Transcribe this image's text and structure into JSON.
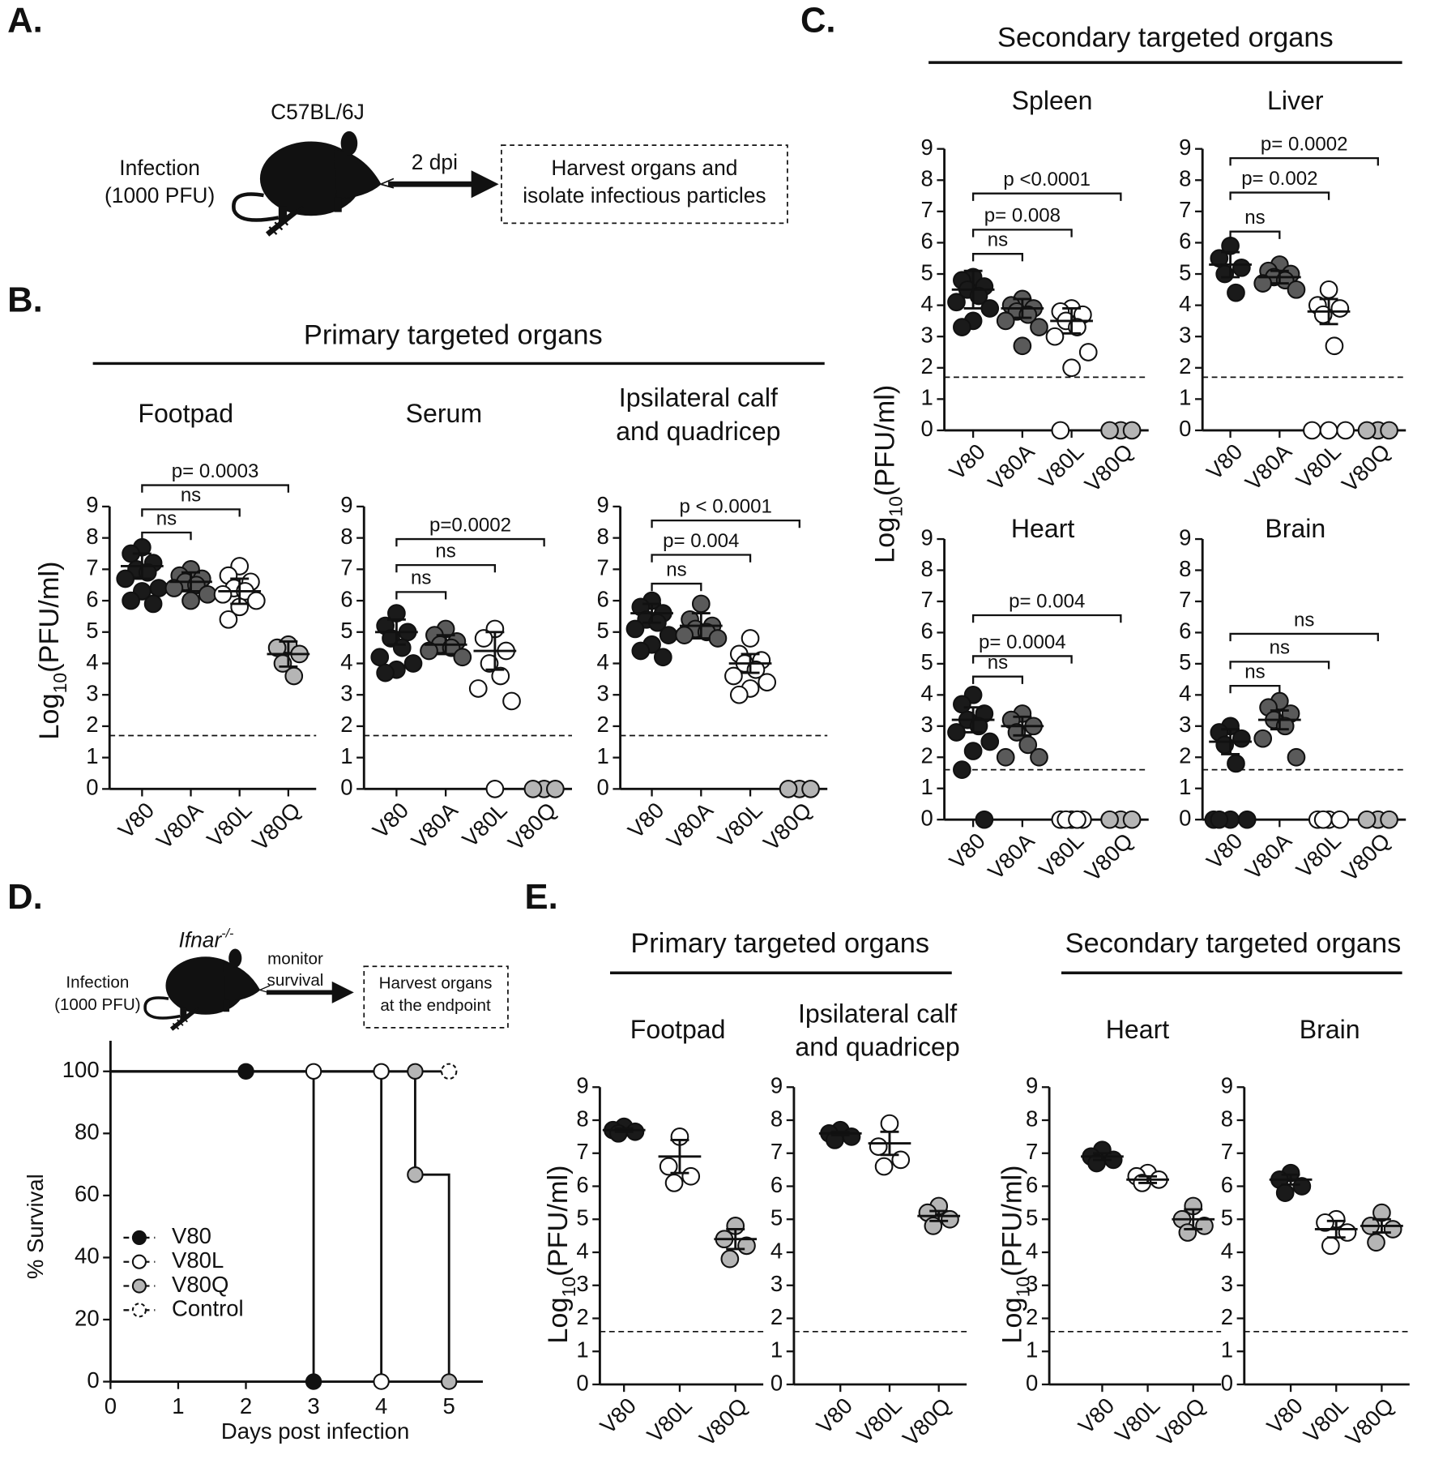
{
  "panels": [
    "A.",
    "B.",
    "C.",
    "D.",
    "E."
  ],
  "schematic_a": {
    "strain": "C57BL/6J",
    "infection": [
      "Infection",
      "(1000 PFU)"
    ],
    "arrow": "2 dpi",
    "box": [
      "Harvest organs and",
      "isolate infectious particles"
    ]
  },
  "schematic_d": {
    "strain": "Ifnar",
    "strain_sup": "-/-",
    "infection": [
      "Infection",
      "(1000 PFU)"
    ],
    "arrow": [
      "monitor",
      "survival"
    ],
    "box": [
      "Harvest organs",
      "at the endpoint"
    ]
  },
  "headers": {
    "b": "Primary targeted organs",
    "c": "Secondary targeted organs",
    "e_primary": "Primary targeted organs",
    "e_secondary": "Secondary targeted organs"
  },
  "ylabel": {
    "base": "Log",
    "sub": "10",
    "rest": "(PFU/ml)"
  },
  "chart_data": [
    {
      "type": "dot",
      "title": [
        "Footpad"
      ],
      "categories": [
        "V80",
        "V80A",
        "V80L",
        "V80Q"
      ],
      "colors": [
        "#1a1a1a",
        "#5a5a5a",
        "#ffffff",
        "#b5b5b5"
      ],
      "points": [
        [
          7.7,
          7.5,
          7.2,
          7.0,
          6.9,
          6.7,
          6.4,
          6.3,
          6.0,
          5.9
        ],
        [
          7.0,
          6.8,
          6.7,
          6.6,
          6.5,
          6.4,
          6.2,
          6.0
        ],
        [
          7.1,
          6.8,
          6.6,
          6.4,
          6.3,
          6.2,
          6.0,
          5.8,
          5.4
        ],
        [
          4.6,
          4.5,
          4.3,
          4.0,
          3.6
        ]
      ],
      "means": [
        7.1,
        6.6,
        6.3,
        4.3
      ],
      "errors": [
        0.4,
        0.3,
        0.4,
        0.4
      ],
      "limit": 1.7,
      "ylim": [
        0,
        9
      ],
      "yticks": [
        0,
        1,
        2,
        3,
        4,
        5,
        6,
        7,
        8,
        9
      ],
      "comparisons": [
        {
          "groups": [
            "V80",
            "V80A"
          ],
          "label": "ns"
        },
        {
          "groups": [
            "V80",
            "V80L"
          ],
          "label": "ns"
        },
        {
          "groups": [
            "V80",
            "V80Q"
          ],
          "label": "p= 0.0003"
        }
      ]
    },
    {
      "type": "dot",
      "title": [
        "Serum"
      ],
      "categories": [
        "V80",
        "V80A",
        "V80L",
        "V80Q"
      ],
      "colors": [
        "#1a1a1a",
        "#5a5a5a",
        "#ffffff",
        "#b5b5b5"
      ],
      "points": [
        [
          5.6,
          5.2,
          5.0,
          4.8,
          4.5,
          4.2,
          4.0,
          3.8,
          3.7
        ],
        [
          5.1,
          4.9,
          4.7,
          4.6,
          4.5,
          4.4,
          4.2
        ],
        [
          5.1,
          4.8,
          4.4,
          4.0,
          3.6,
          3.2,
          2.8,
          0
        ],
        [
          0,
          0,
          0
        ]
      ],
      "means": [
        5.0,
        4.6,
        4.4,
        null
      ],
      "errors": [
        0.4,
        0.3,
        0.6,
        null
      ],
      "limit": 1.7,
      "ylim": [
        0,
        9
      ],
      "yticks": [
        0,
        1,
        2,
        3,
        4,
        5,
        6,
        7,
        8,
        9
      ],
      "comparisons": [
        {
          "groups": [
            "V80",
            "V80A"
          ],
          "label": "ns"
        },
        {
          "groups": [
            "V80",
            "V80L"
          ],
          "label": "ns"
        },
        {
          "groups": [
            "V80",
            "V80Q"
          ],
          "label": "p=0.0002"
        }
      ]
    },
    {
      "type": "dot",
      "title": [
        "Ipsilateral calf",
        "and quadricep"
      ],
      "categories": [
        "V80",
        "V80A",
        "V80L",
        "V80Q"
      ],
      "colors": [
        "#1a1a1a",
        "#5a5a5a",
        "#ffffff",
        "#b5b5b5"
      ],
      "points": [
        [
          6.0,
          5.8,
          5.6,
          5.4,
          5.3,
          5.1,
          4.9,
          4.6,
          4.4,
          4.2
        ],
        [
          5.9,
          5.4,
          5.2,
          5.1,
          5.0,
          4.9,
          4.8
        ],
        [
          4.8,
          4.3,
          4.1,
          4.0,
          3.8,
          3.6,
          3.4,
          3.2,
          3.0
        ],
        [
          0,
          0,
          0
        ]
      ],
      "means": [
        5.6,
        5.2,
        4.0,
        null
      ],
      "errors": [
        0.3,
        0.4,
        0.3,
        null
      ],
      "limit": 1.7,
      "ylim": [
        0,
        9
      ],
      "yticks": [
        0,
        1,
        2,
        3,
        4,
        5,
        6,
        7,
        8,
        9
      ],
      "comparisons": [
        {
          "groups": [
            "V80",
            "V80A"
          ],
          "label": "ns"
        },
        {
          "groups": [
            "V80",
            "V80L"
          ],
          "label": "p= 0.004"
        },
        {
          "groups": [
            "V80",
            "V80Q"
          ],
          "label": "p < 0.0001"
        }
      ]
    },
    {
      "type": "dot",
      "title": [
        "Spleen"
      ],
      "categories": [
        "V80",
        "V80A",
        "V80L",
        "V80Q"
      ],
      "colors": [
        "#1a1a1a",
        "#5a5a5a",
        "#ffffff",
        "#b5b5b5"
      ],
      "points": [
        [
          4.9,
          4.8,
          4.6,
          4.5,
          4.3,
          4.1,
          3.9,
          3.5,
          3.3
        ],
        [
          4.2,
          4.0,
          3.9,
          3.8,
          3.7,
          3.5,
          3.3,
          2.7
        ],
        [
          3.9,
          3.8,
          3.7,
          3.5,
          3.3,
          3.0,
          2.5,
          2.0,
          0
        ],
        [
          0,
          0,
          0
        ]
      ],
      "means": [
        4.5,
        3.9,
        3.5,
        null
      ],
      "errors": [
        0.6,
        0.3,
        0.4,
        null
      ],
      "limit": 1.7,
      "ylim": [
        0,
        9
      ],
      "yticks": [
        0,
        1,
        2,
        3,
        4,
        5,
        6,
        7,
        8,
        9
      ],
      "comparisons": [
        {
          "groups": [
            "V80",
            "V80A"
          ],
          "label": "ns"
        },
        {
          "groups": [
            "V80",
            "V80L"
          ],
          "label": "p= 0.008"
        },
        {
          "groups": [
            "V80",
            "V80Q"
          ],
          "label": "p <0.0001"
        }
      ]
    },
    {
      "type": "dot",
      "title": [
        "Liver"
      ],
      "categories": [
        "V80",
        "V80A",
        "V80L",
        "V80Q"
      ],
      "colors": [
        "#1a1a1a",
        "#5a5a5a",
        "#ffffff",
        "#b5b5b5"
      ],
      "points": [
        [
          5.9,
          5.5,
          5.2,
          5.0,
          4.4
        ],
        [
          5.3,
          5.1,
          5.0,
          4.9,
          4.8,
          4.7,
          4.5
        ],
        [
          4.5,
          4.0,
          3.9,
          3.7,
          2.7,
          0,
          0,
          0
        ],
        [
          0,
          0,
          0
        ]
      ],
      "means": [
        5.3,
        4.9,
        3.8,
        null
      ],
      "errors": [
        0.4,
        0.2,
        0.4,
        null
      ],
      "limit": 1.7,
      "ylim": [
        0,
        9
      ],
      "yticks": [
        0,
        1,
        2,
        3,
        4,
        5,
        6,
        7,
        8,
        9
      ],
      "comparisons": [
        {
          "groups": [
            "V80",
            "V80A"
          ],
          "label": "ns"
        },
        {
          "groups": [
            "V80",
            "V80L"
          ],
          "label": "p= 0.002"
        },
        {
          "groups": [
            "V80",
            "V80Q"
          ],
          "label": "p= 0.0002"
        }
      ]
    },
    {
      "type": "dot",
      "title": [
        "Heart"
      ],
      "categories": [
        "V80",
        "V80A",
        "V80L",
        "V80Q"
      ],
      "colors": [
        "#1a1a1a",
        "#5a5a5a",
        "#ffffff",
        "#b5b5b5"
      ],
      "points": [
        [
          4.0,
          3.7,
          3.4,
          3.2,
          3.0,
          2.8,
          2.5,
          2.2,
          1.6,
          0
        ],
        [
          3.4,
          3.2,
          3.0,
          2.8,
          2.4,
          2.0,
          2.0
        ],
        [
          0,
          0,
          0,
          0,
          0
        ],
        [
          0,
          0,
          0
        ]
      ],
      "means": [
        3.2,
        3.0,
        null,
        null
      ],
      "errors": [
        0.4,
        0.3,
        null,
        null
      ],
      "limit": 1.6,
      "ylim": [
        0,
        9
      ],
      "yticks": [
        0,
        1,
        2,
        3,
        4,
        5,
        6,
        7,
        8,
        9
      ],
      "comparisons": [
        {
          "groups": [
            "V80",
            "V80A"
          ],
          "label": "ns"
        },
        {
          "groups": [
            "V80",
            "V80L"
          ],
          "label": "p= 0.0004"
        },
        {
          "groups": [
            "V80",
            "V80Q"
          ],
          "label": "p= 0.004"
        }
      ]
    },
    {
      "type": "dot",
      "title": [
        "Brain"
      ],
      "categories": [
        "V80",
        "V80A",
        "V80L",
        "V80Q"
      ],
      "colors": [
        "#1a1a1a",
        "#5a5a5a",
        "#ffffff",
        "#b5b5b5"
      ],
      "points": [
        [
          3.0,
          2.8,
          2.6,
          2.4,
          1.8,
          0,
          0,
          0,
          0
        ],
        [
          3.8,
          3.6,
          3.4,
          3.2,
          3.0,
          2.6,
          2.0
        ],
        [
          0,
          0,
          0,
          0
        ],
        [
          0,
          0,
          0
        ]
      ],
      "means": [
        2.5,
        3.2,
        null,
        null
      ],
      "errors": [
        0.4,
        0.3,
        null,
        null
      ],
      "limit": 1.6,
      "ylim": [
        0,
        9
      ],
      "yticks": [
        0,
        1,
        2,
        3,
        4,
        5,
        6,
        7,
        8,
        9
      ],
      "comparisons": [
        {
          "groups": [
            "V80",
            "V80A"
          ],
          "label": "ns"
        },
        {
          "groups": [
            "V80",
            "V80L"
          ],
          "label": "ns"
        },
        {
          "groups": [
            "V80",
            "V80Q"
          ],
          "label": "ns"
        }
      ]
    },
    {
      "type": "survival",
      "xlabel": "Days post infection",
      "ylabel": "% Survival",
      "xlim": [
        0,
        5.5
      ],
      "xticks": [
        0,
        1,
        2,
        3,
        4,
        5
      ],
      "ylim": [
        0,
        100
      ],
      "yticks": [
        0,
        20,
        40,
        60,
        80,
        100
      ],
      "legend": "lower left",
      "series": [
        {
          "name": "V80",
          "color": "#111111",
          "x": [
            0,
            2,
            3
          ],
          "values": [
            100,
            100,
            0
          ]
        },
        {
          "name": "V80L",
          "color": "#ffffff",
          "x": [
            0,
            3,
            4,
            4
          ],
          "values": [
            100,
            100,
            100,
            0
          ]
        },
        {
          "name": "V80Q",
          "color": "#b5b5b5",
          "x": [
            0,
            4.5,
            4.5,
            5
          ],
          "values": [
            100,
            100,
            66.7,
            0
          ]
        },
        {
          "name": "Control",
          "color": "#ffffff",
          "style": "dashed",
          "x": [
            0,
            5
          ],
          "values": [
            100,
            100
          ]
        }
      ]
    },
    {
      "type": "dot",
      "title": [
        "Footpad"
      ],
      "categories": [
        "V80",
        "V80L",
        "V80Q"
      ],
      "colors": [
        "#1a1a1a",
        "#ffffff",
        "#b5b5b5"
      ],
      "points": [
        [
          7.8,
          7.7,
          7.65,
          7.6
        ],
        [
          7.5,
          6.6,
          6.3,
          6.1
        ],
        [
          4.8,
          4.4,
          4.2,
          3.8
        ]
      ],
      "means": [
        7.7,
        6.9,
        4.4
      ],
      "errors": [
        0.05,
        0.5,
        0.3
      ],
      "limit": 1.6,
      "ylim": [
        0,
        9
      ],
      "yticks": [
        0,
        1,
        2,
        3,
        4,
        5,
        6,
        7,
        8,
        9
      ],
      "comparisons": []
    },
    {
      "type": "dot",
      "title": [
        "Ipsilateral calf",
        "and quadricep"
      ],
      "categories": [
        "V80",
        "V80L",
        "V80Q"
      ],
      "colors": [
        "#1a1a1a",
        "#ffffff",
        "#b5b5b5"
      ],
      "points": [
        [
          7.7,
          7.6,
          7.5,
          7.4
        ],
        [
          7.9,
          7.2,
          6.8,
          6.6
        ],
        [
          5.4,
          5.2,
          5.0,
          4.8
        ]
      ],
      "means": [
        7.6,
        7.3,
        5.1
      ],
      "errors": [
        0.05,
        0.35,
        0.15
      ],
      "limit": 1.6,
      "ylim": [
        0,
        9
      ],
      "yticks": [
        0,
        1,
        2,
        3,
        4,
        5,
        6,
        7,
        8,
        9
      ],
      "comparisons": []
    },
    {
      "type": "dot",
      "title": [
        "Heart"
      ],
      "categories": [
        "V80",
        "V80L",
        "V80Q"
      ],
      "colors": [
        "#1a1a1a",
        "#ffffff",
        "#b5b5b5"
      ],
      "points": [
        [
          7.1,
          6.9,
          6.8,
          6.7
        ],
        [
          6.4,
          6.3,
          6.2,
          6.1
        ],
        [
          5.4,
          5.0,
          4.8,
          4.6
        ]
      ],
      "means": [
        6.9,
        6.2,
        5.0
      ],
      "errors": [
        0.1,
        0.1,
        0.3
      ],
      "limit": 1.6,
      "ylim": [
        0,
        9
      ],
      "yticks": [
        0,
        1,
        2,
        3,
        4,
        5,
        6,
        7,
        8,
        9
      ],
      "comparisons": []
    },
    {
      "type": "dot",
      "title": [
        "Brain"
      ],
      "categories": [
        "V80",
        "V80L",
        "V80Q"
      ],
      "colors": [
        "#1a1a1a",
        "#ffffff",
        "#b5b5b5"
      ],
      "points": [
        [
          6.4,
          6.2,
          6.0,
          5.8
        ],
        [
          5.0,
          4.9,
          4.6,
          4.2
        ],
        [
          5.2,
          4.8,
          4.7,
          4.3
        ]
      ],
      "means": [
        6.2,
        4.7,
        4.8
      ],
      "errors": [
        0.15,
        0.25,
        0.2
      ],
      "limit": 1.6,
      "ylim": [
        0,
        9
      ],
      "yticks": [
        0,
        1,
        2,
        3,
        4,
        5,
        6,
        7,
        8,
        9
      ],
      "comparisons": []
    }
  ]
}
